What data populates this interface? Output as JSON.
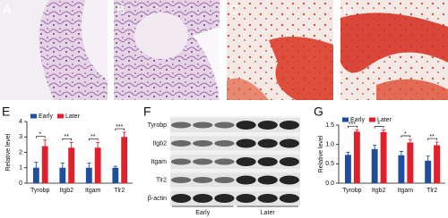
{
  "panel_labels": [
    "A",
    "B",
    "C",
    "D",
    "E",
    "F",
    "G"
  ],
  "blot": {
    "rows": [
      "Tyrobp",
      "Itgb2",
      "Itgam",
      "Tlr2",
      "β-actin"
    ],
    "groups": [
      "Early",
      "Later"
    ]
  },
  "chart_data": [
    {
      "type": "bar",
      "y_label": "Relative level",
      "categories": [
        "Tyrobp",
        "Itgb2",
        "Itgam",
        "Tlr2"
      ],
      "series": [
        {
          "name": "Early",
          "color": "#1f4e9c",
          "values": [
            1.0,
            1.0,
            1.0,
            1.0
          ],
          "errors": [
            0.35,
            0.3,
            0.3,
            0.1
          ]
        },
        {
          "name": "Later",
          "color": "#e0202a",
          "values": [
            2.4,
            2.3,
            2.3,
            3.0
          ],
          "errors": [
            0.4,
            0.35,
            0.35,
            0.3
          ]
        }
      ],
      "significance": [
        "*",
        "**",
        "**",
        "***"
      ],
      "ylim": [
        0,
        4
      ],
      "yticks": [
        0,
        1,
        2,
        3,
        4
      ],
      "legend": "upper left"
    },
    {
      "type": "bar",
      "y_label": "Relative level",
      "categories": [
        "Tyrobp",
        "Itgb2",
        "Itgam",
        "Tlr2"
      ],
      "series": [
        {
          "name": "Early",
          "color": "#1f4e9c",
          "values": [
            0.73,
            0.88,
            0.72,
            0.58
          ],
          "errors": [
            0.07,
            0.1,
            0.1,
            0.12
          ]
        },
        {
          "name": "Later",
          "color": "#e0202a",
          "values": [
            1.33,
            1.32,
            1.05,
            0.98
          ],
          "errors": [
            0.05,
            0.05,
            0.08,
            0.08
          ]
        }
      ],
      "significance": [
        "***",
        "*",
        "*",
        "**"
      ],
      "ylim": [
        0,
        1.5
      ],
      "yticks": [
        {
          "value": 0,
          "label": "0.0"
        },
        {
          "value": 0.5,
          "label": "0.5"
        },
        {
          "value": 1,
          "label": "1.0"
        },
        {
          "value": 1.5,
          "label": "1.5"
        }
      ],
      "legend": "upper left"
    }
  ]
}
